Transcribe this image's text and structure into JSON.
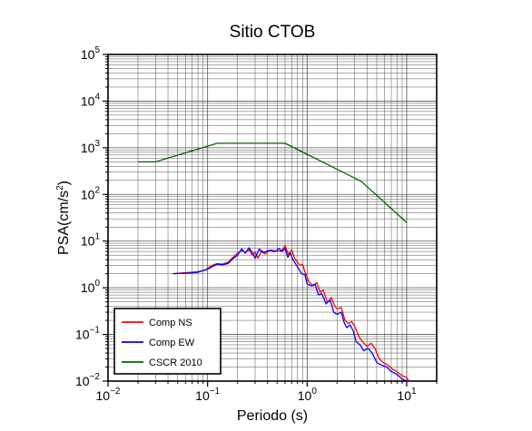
{
  "chart_data": {
    "type": "line",
    "title": "Sitio CTOB",
    "xlabel": "Periodo (s)",
    "ylabel": {
      "text": "PSA(cm/s",
      "sup": "2",
      "tail": ")"
    },
    "x_scale": "log",
    "y_scale": "log",
    "xlim": [
      0.01,
      20
    ],
    "ylim": [
      0.01,
      100000
    ],
    "grid": true,
    "legend_position": "bottom-left",
    "x_ticks": [
      {
        "base": "10",
        "exp": "−2",
        "value": 0.01
      },
      {
        "base": "10",
        "exp": "−1",
        "value": 0.1
      },
      {
        "base": "10",
        "exp": "0",
        "value": 1
      },
      {
        "base": "10",
        "exp": "1",
        "value": 10
      }
    ],
    "y_ticks": [
      {
        "base": "10",
        "exp": "−2",
        "value": 0.01
      },
      {
        "base": "10",
        "exp": "−1",
        "value": 0.1
      },
      {
        "base": "10",
        "exp": "0",
        "value": 1
      },
      {
        "base": "10",
        "exp": "1",
        "value": 10
      },
      {
        "base": "10",
        "exp": "2",
        "value": 100
      },
      {
        "base": "10",
        "exp": "3",
        "value": 1000
      },
      {
        "base": "10",
        "exp": "4",
        "value": 10000
      },
      {
        "base": "10",
        "exp": "5",
        "value": 100000
      }
    ],
    "series": [
      {
        "name": "Comp NS",
        "color": "#ff0000",
        "points": [
          [
            0.045,
            2.0
          ],
          [
            0.06,
            2.1
          ],
          [
            0.08,
            2.2
          ],
          [
            0.095,
            2.4
          ],
          [
            0.11,
            3.0
          ],
          [
            0.125,
            3.3
          ],
          [
            0.14,
            3.2
          ],
          [
            0.16,
            3.5
          ],
          [
            0.18,
            4.5
          ],
          [
            0.2,
            5.5
          ],
          [
            0.22,
            6.2
          ],
          [
            0.24,
            5.8
          ],
          [
            0.26,
            6.5
          ],
          [
            0.28,
            5.0
          ],
          [
            0.3,
            5.8
          ],
          [
            0.32,
            4.3
          ],
          [
            0.35,
            6.3
          ],
          [
            0.38,
            5.3
          ],
          [
            0.42,
            6.3
          ],
          [
            0.46,
            5.9
          ],
          [
            0.5,
            6.2
          ],
          [
            0.55,
            6.0
          ],
          [
            0.6,
            8.0
          ],
          [
            0.65,
            5.2
          ],
          [
            0.7,
            6.5
          ],
          [
            0.75,
            4.2
          ],
          [
            0.85,
            3.0
          ],
          [
            0.9,
            3.2
          ],
          [
            0.95,
            2.2
          ],
          [
            1.05,
            1.3
          ],
          [
            1.15,
            1.1
          ],
          [
            1.25,
            1.3
          ],
          [
            1.35,
            0.8
          ],
          [
            1.45,
            0.9
          ],
          [
            1.6,
            0.48
          ],
          [
            1.75,
            0.62
          ],
          [
            1.9,
            0.4
          ],
          [
            2.0,
            0.35
          ],
          [
            2.2,
            0.38
          ],
          [
            2.4,
            0.2
          ],
          [
            2.6,
            0.17
          ],
          [
            2.8,
            0.19
          ],
          [
            3.0,
            0.15
          ],
          [
            3.3,
            0.09
          ],
          [
            3.6,
            0.07
          ],
          [
            4.0,
            0.055
          ],
          [
            4.4,
            0.065
          ],
          [
            4.8,
            0.05
          ],
          [
            5.3,
            0.03
          ],
          [
            5.8,
            0.025
          ],
          [
            6.5,
            0.022
          ],
          [
            7.2,
            0.018
          ],
          [
            8.0,
            0.016
          ],
          [
            9.0,
            0.013
          ],
          [
            10.0,
            0.012
          ],
          [
            10.5,
            0.01
          ]
        ]
      },
      {
        "name": "Comp EW",
        "color": "#0000ff",
        "points": [
          [
            0.045,
            2.0
          ],
          [
            0.06,
            2.05
          ],
          [
            0.08,
            2.15
          ],
          [
            0.1,
            2.5
          ],
          [
            0.11,
            2.8
          ],
          [
            0.125,
            3.2
          ],
          [
            0.14,
            3.1
          ],
          [
            0.16,
            3.3
          ],
          [
            0.18,
            4.2
          ],
          [
            0.2,
            5.0
          ],
          [
            0.22,
            6.8
          ],
          [
            0.24,
            5.5
          ],
          [
            0.26,
            7.2
          ],
          [
            0.28,
            5.8
          ],
          [
            0.3,
            4.3
          ],
          [
            0.33,
            6.8
          ],
          [
            0.36,
            5.6
          ],
          [
            0.4,
            6.2
          ],
          [
            0.44,
            6.4
          ],
          [
            0.48,
            6.0
          ],
          [
            0.52,
            7.0
          ],
          [
            0.56,
            6.0
          ],
          [
            0.6,
            7.0
          ],
          [
            0.64,
            4.5
          ],
          [
            0.68,
            5.5
          ],
          [
            0.72,
            4.0
          ],
          [
            0.8,
            2.8
          ],
          [
            0.88,
            2.0
          ],
          [
            0.95,
            1.9
          ],
          [
            1.0,
            1.2
          ],
          [
            1.1,
            1.1
          ],
          [
            1.2,
            1.2
          ],
          [
            1.3,
            0.7
          ],
          [
            1.4,
            0.75
          ],
          [
            1.55,
            0.45
          ],
          [
            1.7,
            0.55
          ],
          [
            1.85,
            0.3
          ],
          [
            2.0,
            0.27
          ],
          [
            2.2,
            0.3
          ],
          [
            2.35,
            0.18
          ],
          [
            2.5,
            0.14
          ],
          [
            2.7,
            0.16
          ],
          [
            2.9,
            0.12
          ],
          [
            3.1,
            0.07
          ],
          [
            3.4,
            0.06
          ],
          [
            3.7,
            0.045
          ],
          [
            4.1,
            0.05
          ],
          [
            4.5,
            0.04
          ],
          [
            5.0,
            0.025
          ],
          [
            5.6,
            0.022
          ],
          [
            6.3,
            0.02
          ],
          [
            7.0,
            0.016
          ],
          [
            8.0,
            0.014
          ],
          [
            9.0,
            0.011
          ],
          [
            10.2,
            0.01
          ]
        ]
      },
      {
        "name": "CSCR 2010",
        "color": "#006400",
        "points": [
          [
            0.02,
            500
          ],
          [
            0.03,
            500
          ],
          [
            0.125,
            1250
          ],
          [
            0.6,
            1250
          ],
          [
            3.5,
            190
          ],
          [
            10.0,
            25
          ]
        ]
      }
    ]
  }
}
